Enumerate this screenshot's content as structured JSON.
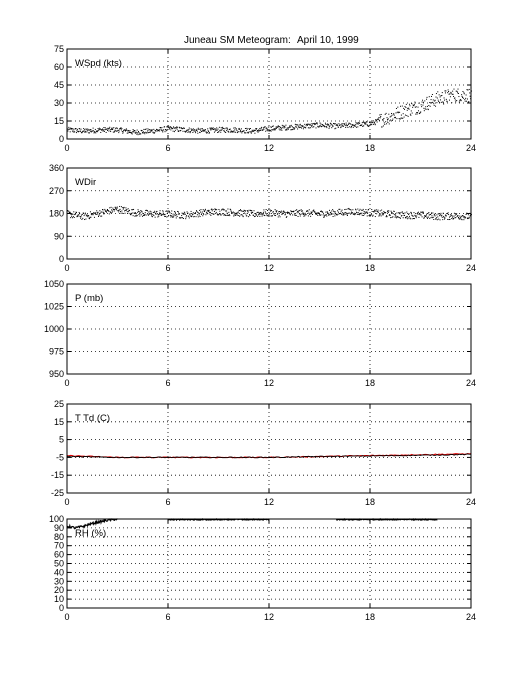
{
  "figure": {
    "title": "Juneau SM Meteogram:",
    "date": "April 10, 1999"
  },
  "colors": {
    "axes": "#000000",
    "grid": "#000000",
    "series_dark": "#000000",
    "series_red": "#e00000",
    "background": "#ffffff"
  },
  "chart_data": [
    {
      "type": "scatter",
      "label": "WSpd (kts)",
      "xlim": [
        0,
        24
      ],
      "xticks": [
        0,
        6,
        12,
        18,
        24
      ],
      "ylim": [
        0,
        75
      ],
      "yticks": [
        0,
        15,
        30,
        45,
        60,
        75
      ],
      "grid": true,
      "series": [
        {
          "x": [
            0,
            1,
            2,
            3,
            4,
            5,
            6,
            7,
            8,
            9,
            10,
            11,
            12,
            13,
            14,
            15,
            16,
            17,
            18,
            19,
            20,
            21,
            22,
            23,
            24
          ],
          "values": [
            8,
            7,
            8,
            8,
            6,
            7,
            9,
            8,
            7,
            8,
            8,
            7,
            9,
            10,
            11,
            12,
            11,
            12,
            13,
            18,
            24,
            28,
            34,
            37,
            37
          ]
        }
      ]
    },
    {
      "type": "scatter",
      "label": "WDir",
      "xlim": [
        0,
        24
      ],
      "xticks": [
        0,
        6,
        12,
        18,
        24
      ],
      "ylim": [
        0,
        360
      ],
      "yticks": [
        0,
        90,
        180,
        270,
        360
      ],
      "yticklabels": [
        "0",
        "90",
        "180",
        "270",
        "360"
      ],
      "grid": true,
      "series": [
        {
          "x": [
            0,
            1,
            2,
            3,
            4,
            5,
            6,
            7,
            8,
            9,
            10,
            11,
            12,
            13,
            14,
            15,
            16,
            17,
            18,
            19,
            20,
            21,
            22,
            23,
            24
          ],
          "values": [
            180,
            170,
            185,
            200,
            185,
            180,
            180,
            175,
            185,
            190,
            185,
            180,
            185,
            180,
            185,
            180,
            185,
            190,
            185,
            180,
            175,
            175,
            170,
            172,
            170
          ]
        }
      ]
    },
    {
      "type": "line",
      "label": "P (mb)",
      "xlim": [
        0,
        24
      ],
      "xticks": [
        0,
        6,
        12,
        18,
        24
      ],
      "ylim": [
        950,
        1050
      ],
      "yticks": [
        950,
        975,
        1000,
        1025,
        1050
      ],
      "grid": true,
      "series": []
    },
    {
      "type": "line",
      "label": "T Td (C)",
      "xlim": [
        0,
        24
      ],
      "xticks": [
        0,
        6,
        12,
        18,
        24
      ],
      "ylim": [
        -25,
        25
      ],
      "yticks": [
        -25,
        -15,
        -5,
        5,
        15,
        25
      ],
      "grid": true,
      "series": [
        {
          "color": "#e00000",
          "x": [
            0,
            3,
            6,
            9,
            12,
            15,
            18,
            21,
            24
          ],
          "values": [
            -4,
            -5,
            -5,
            -5,
            -5,
            -4.5,
            -4,
            -3.5,
            -3
          ]
        },
        {
          "color": "#000000",
          "x": [
            0,
            3,
            6,
            9,
            12,
            15,
            18,
            21,
            24
          ],
          "values": [
            -4.5,
            -5,
            -5,
            -5,
            -5,
            -4.5,
            -4.2,
            -3.8,
            -3.3
          ]
        }
      ]
    },
    {
      "type": "line",
      "label": "RH (%)",
      "xlim": [
        0,
        24
      ],
      "xticks": [
        0,
        6,
        12,
        18,
        24
      ],
      "ylim": [
        0,
        100
      ],
      "yticks": [
        0,
        10,
        20,
        30,
        40,
        50,
        60,
        70,
        80,
        90,
        100
      ],
      "grid": true,
      "series": [
        {
          "x": [
            0,
            0.5,
            1,
            1.5,
            2,
            2.5,
            3
          ],
          "values": [
            92,
            90,
            92,
            95,
            97,
            99,
            100
          ]
        },
        {
          "x": [
            6,
            7,
            8,
            9,
            10,
            11,
            12
          ],
          "values": [
            100,
            100,
            100,
            100,
            100,
            100,
            100
          ]
        },
        {
          "x": [
            16,
            17,
            18,
            19,
            20,
            21,
            22
          ],
          "values": [
            100,
            100,
            100,
            100,
            100,
            100,
            100
          ]
        }
      ]
    }
  ]
}
